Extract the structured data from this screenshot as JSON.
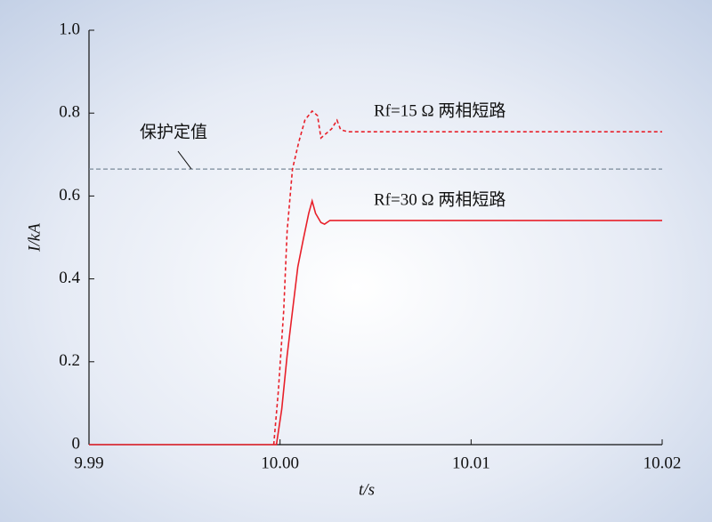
{
  "chart_data": {
    "type": "line",
    "xlabel": "t/s",
    "ylabel": "I/kA",
    "xlim": [
      9.99,
      10.02
    ],
    "xticks": [
      9.99,
      {
        "value": 10,
        "label": "10.00"
      },
      10.01,
      10.02
    ],
    "ylim": [
      0,
      1
    ],
    "yticks": [
      0,
      0.2,
      0.4,
      0.6,
      0.8,
      {
        "value": 1,
        "label": "1.0"
      }
    ],
    "threshold": {
      "value": 0.665,
      "label": "保护定值",
      "color": "#7a8a99"
    },
    "series": [
      {
        "name": "Rf=15 Ω 两相短路",
        "color": "#e8202a",
        "dashed": true,
        "x": [
          9.99967,
          9.99991,
          10.00019,
          10.00037,
          10.00065,
          10.00098,
          10.0013,
          10.00168,
          10.00196,
          10.00214,
          10.00242,
          10.0027,
          10.00298,
          10.00317,
          10.00354,
          10.02
        ],
        "values": [
          0,
          0.129,
          0.322,
          0.515,
          0.665,
          0.73,
          0.783,
          0.805,
          0.794,
          0.74,
          0.751,
          0.762,
          0.783,
          0.76,
          0.755,
          0.755
        ]
      },
      {
        "name": "Rf=30 Ω 两相短路",
        "color": "#e8202a",
        "dashed": false,
        "x": [
          9.99,
          9.99981,
          10.00009,
          10.00037,
          10.00065,
          10.00093,
          10.00121,
          10.0015,
          10.00168,
          10.00186,
          10.00214,
          10.00233,
          10.00261,
          10.02
        ],
        "values": [
          0,
          0,
          0.086,
          0.215,
          0.322,
          0.429,
          0.494,
          0.558,
          0.588,
          0.558,
          0.536,
          0.532,
          0.541,
          0.541
        ]
      }
    ]
  }
}
